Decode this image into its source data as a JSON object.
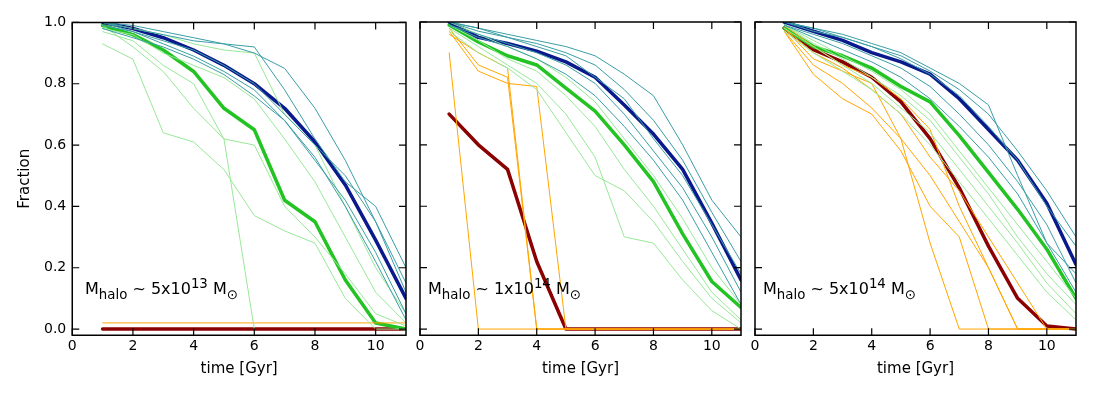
{
  "chart_data": [
    {
      "type": "line",
      "xlabel": "time [Gyr]",
      "ylabel": "Fraction",
      "annotations": [
        "M$_{halo}$ ~ 5x10$^{13}$ M$_{⊙}$"
      ],
      "x": [
        1,
        2,
        3,
        4,
        5,
        6,
        7,
        8,
        9,
        10,
        11
      ],
      "xlim": [
        0,
        11
      ],
      "ylim": [
        -0.02,
        1.0
      ],
      "xticks": [
        0,
        2,
        4,
        6,
        8,
        10
      ],
      "yticks": [
        {
          "value": 0,
          "label": "0.0"
        },
        0.2,
        0.4,
        0.6,
        0.8,
        {
          "value": 1,
          "label": "1.0"
        }
      ],
      "grid": false,
      "legend": false,
      "marker": "none",
      "line_style": "solid",
      "series": [
        {
          "color": "#3a9ea5",
          "values": [
            1.0,
            0.99,
            0.97,
            0.95,
            0.93,
            0.9,
            0.85,
            0.72,
            0.55,
            0.35,
            0.15
          ]
        },
        {
          "color": "#3a9ea5",
          "values": [
            0.99,
            0.97,
            0.93,
            0.89,
            0.84,
            0.78,
            0.68,
            0.55,
            0.42,
            0.25,
            0.05
          ]
        },
        {
          "color": "#3a9ea5",
          "values": [
            1.0,
            0.98,
            0.96,
            0.94,
            0.93,
            0.92,
            0.78,
            0.62,
            0.48,
            0.4,
            0.2
          ]
        },
        {
          "color": "#3a9ea5",
          "values": [
            0.98,
            0.95,
            0.92,
            0.88,
            0.83,
            0.76,
            0.68,
            0.56,
            0.4,
            0.22,
            0.03
          ]
        },
        {
          "color": "#3a9ea5",
          "values": [
            1.0,
            0.97,
            0.94,
            0.91,
            0.86,
            0.8,
            0.7,
            0.6,
            0.5,
            0.35,
            0.12
          ]
        },
        {
          "color": "#98e898",
          "values": [
            0.93,
            0.88,
            0.64,
            0.61,
            0.52,
            0.37,
            0.32,
            0.28,
            0.1,
            0.0,
            0.0
          ]
        },
        {
          "color": "#98e898",
          "values": [
            0.99,
            0.92,
            0.84,
            0.72,
            0.62,
            0.0,
            null,
            null,
            null,
            null,
            null
          ]
        },
        {
          "color": "#98e898",
          "values": [
            0.98,
            0.96,
            0.9,
            0.86,
            0.82,
            0.75,
            0.62,
            0.48,
            0.3,
            0.12,
            0.02
          ]
        },
        {
          "color": "#98e898",
          "values": [
            0.97,
            0.94,
            0.86,
            0.8,
            0.62,
            0.6,
            0.4,
            0.3,
            0.18,
            0.05,
            0.01
          ]
        },
        {
          "color": "#98e898",
          "values": [
            1.0,
            0.98,
            0.96,
            0.93,
            0.91,
            0.9,
            0.7,
            0.6,
            0.4,
            0.2,
            0.05
          ]
        },
        {
          "color": "#ffa500",
          "values": [
            0.02,
            0.02,
            0.02,
            0.02,
            0.02,
            0.02,
            0.02,
            0.02,
            0.02,
            0.02,
            0.02
          ]
        },
        {
          "color": "#0a1a8c",
          "values": [
            1.0,
            0.98,
            0.95,
            0.91,
            0.86,
            0.8,
            0.72,
            0.61,
            0.47,
            0.29,
            0.1
          ]
        },
        {
          "color": "#22c322",
          "values": [
            0.99,
            0.96,
            0.91,
            0.84,
            0.72,
            0.65,
            0.42,
            0.35,
            0.16,
            0.02,
            0.0
          ]
        },
        {
          "color": "#8b0000",
          "values": [
            0.0,
            0.0,
            0.0,
            0.0,
            0.0,
            0.0,
            0.0,
            0.0,
            0.0,
            0.0,
            0.0
          ]
        }
      ]
    },
    {
      "type": "line",
      "xlabel": "time [Gyr]",
      "annotations": [
        "M$_{halo}$ ~ 1x10$^{14}$ M$_{⊙}$"
      ],
      "x": [
        1,
        2,
        3,
        4,
        5,
        6,
        7,
        8,
        9,
        10,
        11
      ],
      "xlim": [
        0,
        11
      ],
      "ylim": [
        -0.02,
        1.0
      ],
      "xticks": [
        0,
        2,
        4,
        6,
        8,
        10
      ],
      "yticks": [
        0.0,
        0.2,
        0.4,
        0.6,
        0.8,
        1.0
      ],
      "tick_labels": "x",
      "grid": false,
      "legend": false,
      "marker": "none",
      "line_style": "solid",
      "series": [
        {
          "color": "#3a9ea5",
          "values": [
            1.0,
            0.98,
            0.96,
            0.94,
            0.92,
            0.89,
            0.83,
            0.76,
            0.6,
            0.42,
            0.3
          ]
        },
        {
          "color": "#3a9ea5",
          "values": [
            1.0,
            0.97,
            0.95,
            0.92,
            0.89,
            0.82,
            0.75,
            0.62,
            0.5,
            0.34,
            0.18
          ]
        },
        {
          "color": "#3a9ea5",
          "values": [
            0.99,
            0.96,
            0.93,
            0.9,
            0.86,
            0.8,
            0.7,
            0.58,
            0.46,
            0.3,
            0.12
          ]
        },
        {
          "color": "#3a9ea5",
          "values": [
            1.0,
            0.98,
            0.95,
            0.93,
            0.9,
            0.86,
            0.78,
            0.68,
            0.55,
            0.38,
            0.22
          ]
        },
        {
          "color": "#3a9ea5",
          "values": [
            0.99,
            0.95,
            0.92,
            0.88,
            0.83,
            0.76,
            0.66,
            0.55,
            0.42,
            0.25,
            0.08
          ]
        },
        {
          "color": "#98e898",
          "values": [
            0.98,
            0.92,
            0.86,
            0.8,
            0.7,
            0.56,
            0.3,
            0.28,
            0.16,
            0.06,
            0.0
          ]
        },
        {
          "color": "#98e898",
          "values": [
            0.99,
            0.94,
            0.88,
            0.84,
            0.76,
            0.66,
            0.52,
            0.4,
            0.26,
            0.12,
            0.03
          ]
        },
        {
          "color": "#98e898",
          "values": [
            0.97,
            0.9,
            0.85,
            0.78,
            0.64,
            0.5,
            0.45,
            0.35,
            0.22,
            0.1,
            0.02
          ]
        },
        {
          "color": "#98e898",
          "values": [
            1.0,
            0.96,
            0.92,
            0.88,
            0.82,
            0.74,
            0.62,
            0.5,
            0.36,
            0.2,
            0.08
          ]
        },
        {
          "color": "#ffa500",
          "values": [
            0.9,
            0.0,
            0.0,
            0.0,
            0.0,
            0.0,
            0.0,
            0.0,
            0.0,
            0.0,
            0.0
          ]
        },
        {
          "color": "#ffa500",
          "values": [
            0.98,
            0.86,
            0.82,
            0.0,
            0.0,
            0.0,
            0.0,
            0.0,
            0.0,
            0.0,
            0.0
          ]
        },
        {
          "color": "#ffa500",
          "values": [
            0.97,
            0.84,
            0.8,
            0.79,
            0.0,
            0.0,
            0.0,
            0.0,
            0.0,
            0.0,
            0.0
          ]
        },
        {
          "color": "#ffa500",
          "values": [
            0.96,
            0.9,
            0.85,
            0.0,
            0.0,
            0.0,
            0.0,
            0.0,
            0.0,
            0.0,
            0.0
          ]
        },
        {
          "color": "#0a1a8c",
          "values": [
            1.0,
            0.95,
            0.93,
            0.905,
            0.87,
            0.82,
            0.73,
            0.635,
            0.52,
            0.345,
            0.16
          ]
        },
        {
          "color": "#22c322",
          "values": [
            0.99,
            0.935,
            0.89,
            0.86,
            0.785,
            0.71,
            0.6,
            0.48,
            0.31,
            0.155,
            0.07
          ]
        },
        {
          "color": "#8b0000",
          "values": [
            0.7,
            0.6,
            0.52,
            0.22,
            0.0,
            0.0,
            0.0,
            0.0,
            0.0,
            0.0,
            0.0
          ]
        }
      ]
    },
    {
      "type": "line",
      "xlabel": "time [Gyr]",
      "annotations": [
        "M$_{halo}$ ~ 5x10$^{14}$ M$_{⊙}$"
      ],
      "x": [
        1,
        2,
        3,
        4,
        5,
        6,
        7,
        8,
        9,
        10,
        11
      ],
      "xlim": [
        0,
        11
      ],
      "ylim": [
        -0.02,
        1.0
      ],
      "xticks": [
        0,
        2,
        4,
        6,
        8,
        10
      ],
      "yticks": [
        0.0,
        0.2,
        0.4,
        0.6,
        0.8,
        1.0
      ],
      "tick_labels": "x",
      "grid": false,
      "legend": false,
      "marker": "none",
      "line_style": "solid",
      "series": [
        {
          "color": "#3a9ea5",
          "values": [
            1.0,
            0.98,
            0.96,
            0.93,
            0.9,
            0.85,
            0.8,
            0.73,
            0.5,
            0.28,
            0.18
          ]
        },
        {
          "color": "#3a9ea5",
          "values": [
            1.0,
            0.98,
            0.95,
            0.92,
            0.88,
            0.83,
            0.76,
            0.66,
            0.55,
            0.4,
            0.27
          ]
        },
        {
          "color": "#3a9ea5",
          "values": [
            0.99,
            0.96,
            0.93,
            0.89,
            0.85,
            0.79,
            0.7,
            0.6,
            0.48,
            0.34,
            0.15
          ]
        },
        {
          "color": "#3a9ea5",
          "values": [
            1.0,
            0.97,
            0.95,
            0.92,
            0.89,
            0.84,
            0.78,
            0.7,
            0.58,
            0.45,
            0.3
          ]
        },
        {
          "color": "#3a9ea5",
          "values": [
            0.99,
            0.95,
            0.91,
            0.87,
            0.82,
            0.75,
            0.66,
            0.56,
            0.44,
            0.28,
            0.12
          ]
        },
        {
          "color": "#98e898",
          "values": [
            0.98,
            0.92,
            0.86,
            0.8,
            0.72,
            0.64,
            0.52,
            0.4,
            0.28,
            0.15,
            0.05
          ]
        },
        {
          "color": "#98e898",
          "values": [
            0.99,
            0.94,
            0.89,
            0.84,
            0.78,
            0.7,
            0.58,
            0.46,
            0.34,
            0.22,
            0.1
          ]
        },
        {
          "color": "#98e898",
          "values": [
            0.97,
            0.9,
            0.84,
            0.78,
            0.7,
            0.6,
            0.48,
            0.36,
            0.24,
            0.12,
            0.03
          ]
        },
        {
          "color": "#98e898",
          "values": [
            0.99,
            0.93,
            0.88,
            0.82,
            0.76,
            0.68,
            0.56,
            0.44,
            0.3,
            0.18,
            0.08
          ]
        },
        {
          "color": "#ffa500",
          "values": [
            0.98,
            0.88,
            0.84,
            0.8,
            0.62,
            0.28,
            0.0,
            0.0,
            0.0,
            0.0,
            0.0
          ]
        },
        {
          "color": "#ffa500",
          "values": [
            0.97,
            0.83,
            0.75,
            0.7,
            0.58,
            0.4,
            0.3,
            0.0,
            0.0,
            0.0,
            0.0
          ]
        },
        {
          "color": "#ffa500",
          "values": [
            0.99,
            0.92,
            0.86,
            0.82,
            0.75,
            0.65,
            0.4,
            0.2,
            0.0,
            0.0,
            0.0
          ]
        },
        {
          "color": "#ffa500",
          "values": [
            0.98,
            0.9,
            0.85,
            0.78,
            0.7,
            0.56,
            0.45,
            0.3,
            0.15,
            0.0,
            0.0
          ]
        },
        {
          "color": "#ffa500",
          "values": [
            0.97,
            0.86,
            0.8,
            0.72,
            0.62,
            0.5,
            0.35,
            0.2,
            0.0,
            0.0,
            0.0
          ]
        },
        {
          "color": "#0a1a8c",
          "values": [
            1.0,
            0.97,
            0.94,
            0.9,
            0.87,
            0.83,
            0.75,
            0.65,
            0.55,
            0.41,
            0.21
          ]
        },
        {
          "color": "#22c322",
          "values": [
            0.98,
            0.92,
            0.89,
            0.85,
            0.79,
            0.74,
            0.63,
            0.51,
            0.39,
            0.26,
            0.1
          ]
        },
        {
          "color": "#8b0000",
          "values": [
            0.98,
            0.91,
            0.87,
            0.82,
            0.74,
            0.62,
            0.46,
            0.27,
            0.1,
            0.01,
            0.0
          ]
        }
      ]
    }
  ]
}
